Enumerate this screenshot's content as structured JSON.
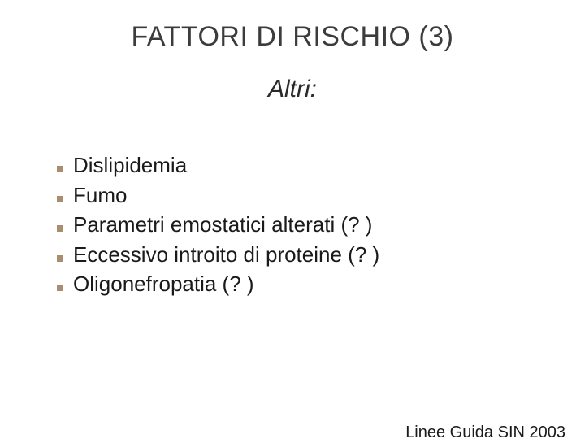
{
  "colors": {
    "background": "#ffffff",
    "title_color": "#3c3c3c",
    "subtitle_color": "#2a2a2a",
    "text_color": "#1a1a1a",
    "bullet_color": "#a88d6e",
    "footer_color": "#1a1a1a"
  },
  "title": "FATTORI DI RISCHIO (3)",
  "subtitle": "Altri:",
  "list": {
    "items": [
      {
        "text": "Dislipidemia"
      },
      {
        "text": "Fumo"
      },
      {
        "text": "Parametri emostatici alterati (? )"
      },
      {
        "text": "Eccessivo introito di proteine (? )"
      },
      {
        "text": "Oligonefropatia (? )"
      }
    ]
  },
  "footer": "Linee Guida SIN 2003"
}
